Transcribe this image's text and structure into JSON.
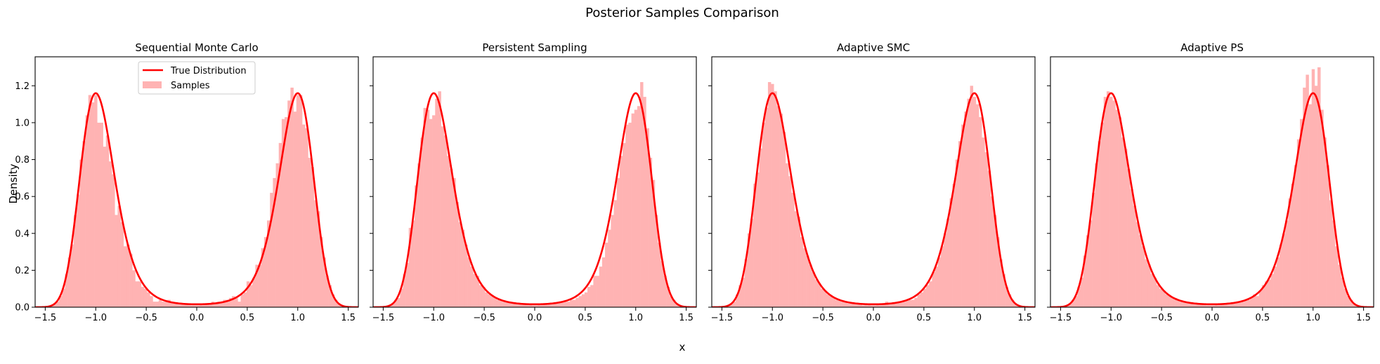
{
  "figure": {
    "suptitle": "Posterior Samples Comparison",
    "xlabel": "x",
    "ylabel": "Density"
  },
  "colors": {
    "curve": "#ff0000",
    "hist": "#ffb3b3",
    "axes": "#000000",
    "legend_border": "#cccccc"
  },
  "legend": {
    "items": [
      {
        "label": "True Distribution",
        "kind": "line"
      },
      {
        "label": "Samples",
        "kind": "patch"
      }
    ]
  },
  "chart_data": [
    {
      "type": "bar+line",
      "title": "Sequential Monte Carlo",
      "xlabel": "x",
      "ylabel": "Density",
      "xlim": [
        -1.6,
        1.6
      ],
      "ylim": [
        0,
        1.357
      ],
      "xticks": [
        "−1.5",
        "−1.0",
        "−0.5",
        "0.0",
        "0.5",
        "1.0",
        "1.5"
      ],
      "xtick_values": [
        -1.5,
        -1.0,
        -0.5,
        0.0,
        0.5,
        1.0,
        1.5
      ],
      "yticks": [
        "0.0",
        "0.2",
        "0.4",
        "0.6",
        "0.8",
        "1.0",
        "1.2"
      ],
      "ytick_values": [
        0.0,
        0.2,
        0.4,
        0.6,
        0.8,
        1.0,
        1.2
      ],
      "grid": false,
      "legend_position": "upper center",
      "hist_bins": {
        "start": -1.45,
        "width": 0.029,
        "values": [
          0.01,
          0.02,
          0.03,
          0.06,
          0.1,
          0.18,
          0.27,
          0.34,
          0.5,
          0.61,
          0.8,
          0.9,
          1.04,
          1.15,
          1.11,
          1.15,
          1.0,
          1.0,
          0.87,
          0.93,
          0.79,
          0.72,
          0.5,
          0.55,
          0.46,
          0.33,
          0.34,
          0.29,
          0.2,
          0.14,
          0.14,
          0.11,
          0.1,
          0.08,
          0.06,
          0.03,
          0.03,
          0.04,
          0.03,
          0.03,
          0.04,
          0.03,
          0.02,
          0.02,
          0.02,
          0.02,
          0.02,
          0.02,
          0.01,
          0.01,
          0.01,
          0.02,
          0.02,
          0.02,
          0.02,
          0.03,
          0.02,
          0.03,
          0.03,
          0.04,
          0.04,
          0.05,
          0.06,
          0.05,
          0.03,
          0.07,
          0.08,
          0.14,
          0.12,
          0.16,
          0.23,
          0.23,
          0.32,
          0.38,
          0.47,
          0.62,
          0.7,
          0.78,
          0.89,
          1.02,
          1.03,
          1.12,
          1.19,
          1.06,
          1.15,
          1.15,
          0.99,
          0.97,
          0.81,
          0.76,
          0.58,
          0.52,
          0.38,
          0.27,
          0.17,
          0.12,
          0.07,
          0.04,
          0.02,
          0.01
        ]
      },
      "true_distribution": {
        "formula": "1.16*exp(-4.3*(x^2-1)^2)",
        "peak_x": [
          -1.0,
          1.0
        ],
        "peak_y": 1.16,
        "min_y": 0.016
      }
    },
    {
      "type": "bar+line",
      "title": "Persistent Sampling",
      "xlim": [
        -1.6,
        1.6
      ],
      "ylim": [
        0,
        1.357
      ],
      "xticks": [
        "−1.5",
        "−1.0",
        "−0.5",
        "0.0",
        "0.5",
        "1.0",
        "1.5"
      ],
      "xtick_values": [
        -1.5,
        -1.0,
        -0.5,
        0.0,
        0.5,
        1.0,
        1.5
      ],
      "yticks": [],
      "ytick_values": [
        0.0,
        0.2,
        0.4,
        0.6,
        0.8,
        1.0,
        1.2
      ],
      "grid": false,
      "hist_bins": {
        "start": -1.45,
        "width": 0.029,
        "values": [
          0.01,
          0.02,
          0.04,
          0.05,
          0.1,
          0.18,
          0.24,
          0.43,
          0.47,
          0.66,
          0.78,
          0.92,
          1.08,
          1.07,
          1.02,
          1.04,
          1.13,
          1.17,
          0.98,
          0.93,
          0.82,
          0.75,
          0.7,
          0.57,
          0.46,
          0.42,
          0.34,
          0.27,
          0.22,
          0.18,
          0.17,
          0.12,
          0.11,
          0.08,
          0.07,
          0.06,
          0.05,
          0.04,
          0.04,
          0.03,
          0.03,
          0.03,
          0.02,
          0.02,
          0.02,
          0.02,
          0.02,
          0.02,
          0.02,
          0.01,
          0.01,
          0.02,
          0.02,
          0.02,
          0.02,
          0.02,
          0.02,
          0.02,
          0.03,
          0.03,
          0.03,
          0.03,
          0.04,
          0.04,
          0.05,
          0.06,
          0.07,
          0.08,
          0.11,
          0.12,
          0.17,
          0.17,
          0.22,
          0.27,
          0.35,
          0.42,
          0.5,
          0.58,
          0.7,
          0.82,
          0.89,
          0.99,
          1.0,
          1.05,
          1.07,
          1.09,
          1.22,
          1.14,
          0.97,
          0.81,
          0.69,
          0.5,
          0.35,
          0.25,
          0.17,
          0.11,
          0.06,
          0.04,
          0.02,
          0.01
        ]
      },
      "true_distribution": {
        "formula": "1.16*exp(-4.3*(x^2-1)^2)",
        "peak_x": [
          -1.0,
          1.0
        ],
        "peak_y": 1.16,
        "min_y": 0.016
      }
    },
    {
      "type": "bar+line",
      "title": "Adaptive SMC",
      "xlim": [
        -1.6,
        1.6
      ],
      "ylim": [
        0,
        1.357
      ],
      "xticks": [
        "−1.5",
        "−1.0",
        "−0.5",
        "0.0",
        "0.5",
        "1.0",
        "1.5"
      ],
      "xtick_values": [
        -1.5,
        -1.0,
        -0.5,
        0.0,
        0.5,
        1.0,
        1.5
      ],
      "yticks": [],
      "ytick_values": [
        0.0,
        0.2,
        0.4,
        0.6,
        0.8,
        1.0,
        1.2
      ],
      "grid": false,
      "hist_bins": {
        "start": -1.45,
        "width": 0.029,
        "values": [
          0.01,
          0.02,
          0.03,
          0.07,
          0.12,
          0.16,
          0.26,
          0.4,
          0.48,
          0.67,
          0.73,
          0.86,
          1.0,
          1.08,
          1.22,
          1.21,
          1.17,
          1.09,
          1.05,
          0.95,
          0.78,
          0.71,
          0.62,
          0.52,
          0.49,
          0.38,
          0.32,
          0.28,
          0.23,
          0.19,
          0.15,
          0.13,
          0.1,
          0.09,
          0.07,
          0.06,
          0.05,
          0.04,
          0.04,
          0.03,
          0.03,
          0.02,
          0.02,
          0.02,
          0.02,
          0.02,
          0.01,
          0.02,
          0.02,
          0.01,
          0.01,
          0.02,
          0.02,
          0.02,
          0.03,
          0.02,
          0.02,
          0.02,
          0.03,
          0.03,
          0.03,
          0.04,
          0.04,
          0.04,
          0.05,
          0.07,
          0.08,
          0.1,
          0.12,
          0.14,
          0.19,
          0.22,
          0.27,
          0.33,
          0.4,
          0.48,
          0.59,
          0.67,
          0.8,
          0.9,
          0.99,
          1.06,
          1.13,
          1.2,
          1.14,
          1.1,
          1.03,
          0.92,
          0.84,
          0.74,
          0.6,
          0.5,
          0.38,
          0.26,
          0.18,
          0.11,
          0.07,
          0.04,
          0.02,
          0.01
        ]
      },
      "true_distribution": {
        "formula": "1.16*exp(-4.3*(x^2-1)^2)",
        "peak_x": [
          -1.0,
          1.0
        ],
        "peak_y": 1.16,
        "min_y": 0.016
      }
    },
    {
      "type": "bar+line",
      "title": "Adaptive PS",
      "xlim": [
        -1.6,
        1.6
      ],
      "ylim": [
        0,
        1.357
      ],
      "xticks": [
        "−1.5",
        "−1.0",
        "−0.5",
        "0.0",
        "0.5",
        "1.0",
        "1.5"
      ],
      "xtick_values": [
        -1.5,
        -1.0,
        -0.5,
        0.0,
        0.5,
        1.0,
        1.5
      ],
      "yticks": [],
      "ytick_values": [
        0.0,
        0.2,
        0.4,
        0.6,
        0.8,
        1.0,
        1.2
      ],
      "grid": false,
      "hist_bins": {
        "start": -1.45,
        "width": 0.029,
        "values": [
          0.01,
          0.02,
          0.04,
          0.06,
          0.11,
          0.16,
          0.28,
          0.39,
          0.47,
          0.62,
          0.78,
          0.9,
          1.0,
          1.14,
          1.17,
          1.14,
          1.12,
          1.07,
          1.03,
          0.92,
          0.86,
          0.75,
          0.64,
          0.55,
          0.46,
          0.39,
          0.33,
          0.26,
          0.23,
          0.18,
          0.16,
          0.12,
          0.1,
          0.09,
          0.07,
          0.06,
          0.05,
          0.05,
          0.04,
          0.03,
          0.03,
          0.03,
          0.02,
          0.02,
          0.02,
          0.02,
          0.02,
          0.02,
          0.01,
          0.01,
          0.01,
          0.02,
          0.02,
          0.02,
          0.02,
          0.02,
          0.02,
          0.02,
          0.03,
          0.03,
          0.03,
          0.04,
          0.04,
          0.05,
          0.07,
          0.06,
          0.09,
          0.12,
          0.14,
          0.15,
          0.18,
          0.22,
          0.27,
          0.34,
          0.4,
          0.47,
          0.59,
          0.67,
          0.77,
          0.91,
          1.02,
          1.19,
          1.26,
          1.1,
          1.29,
          1.2,
          1.3,
          1.07,
          0.92,
          0.77,
          0.58,
          0.47,
          0.33,
          0.23,
          0.16,
          0.1,
          0.06,
          0.04,
          0.02,
          0.01
        ]
      },
      "true_distribution": {
        "formula": "1.16*exp(-4.3*(x^2-1)^2)",
        "peak_x": [
          -1.0,
          1.0
        ],
        "peak_y": 1.16,
        "min_y": 0.016
      }
    }
  ]
}
